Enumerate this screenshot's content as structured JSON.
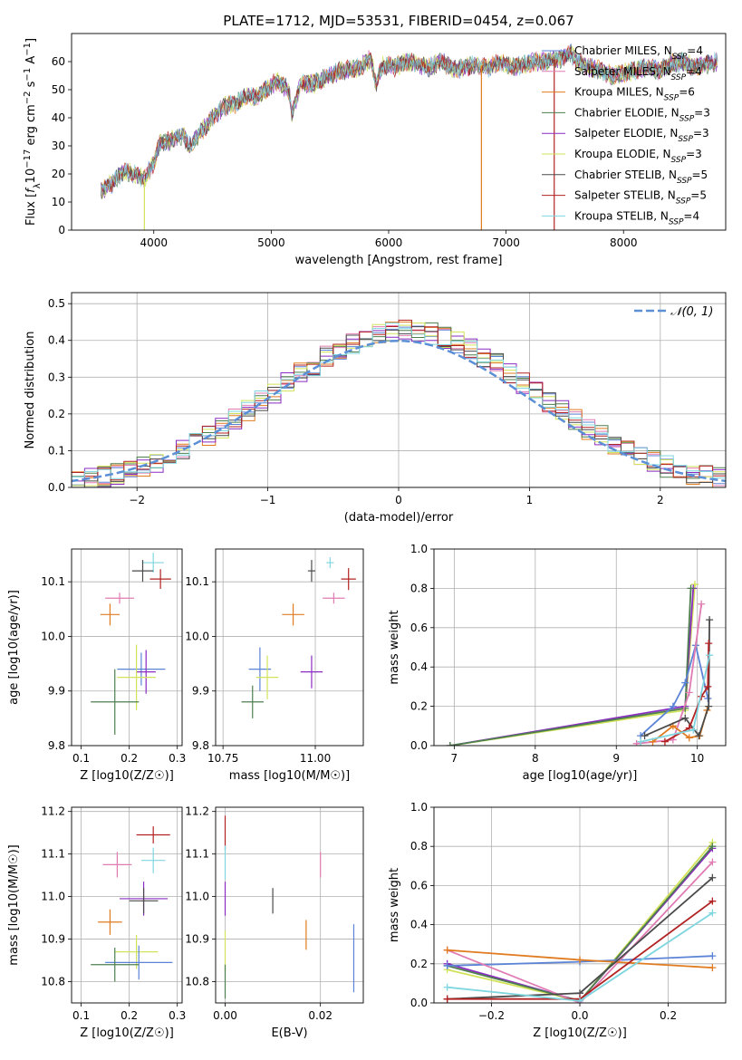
{
  "chart_data": [
    {
      "type": "line",
      "title": "PLATE=1712, MJD=53531, FIBERID=0454, z=0.067",
      "xlabel": "wavelength [Angstrom, rest frame]",
      "ylabel": "Flux [f_λ 10^-17 erg cm^-2 s^-1 A^-1]",
      "xlim": [
        3300,
        8870
      ],
      "ylim": [
        0,
        70
      ],
      "xticks": [
        "4000",
        "5000",
        "6000",
        "7000",
        "8000"
      ],
      "yticks": [
        "0",
        "10",
        "20",
        "30",
        "40",
        "50",
        "60"
      ],
      "grid": false,
      "legend_position": "top-right",
      "spectrum_anchors": {
        "x": [
          3550,
          3650,
          3750,
          3850,
          3920,
          4000,
          4050,
          4150,
          4250,
          4300,
          4400,
          4500,
          4600,
          4700,
          4800,
          4861,
          4950,
          5050,
          5150,
          5175,
          5250,
          5350,
          5450,
          5550,
          5650,
          5750,
          5850,
          5893,
          5950,
          6050,
          6150,
          6250,
          6350,
          6450,
          6563,
          6650,
          6750,
          6850,
          6950,
          7050,
          7150,
          7250,
          7350,
          7450,
          7550,
          7600,
          7700,
          7800,
          7900,
          8000,
          8100,
          8200,
          8300,
          8400,
          8500,
          8600,
          8700,
          8800
        ],
        "y": [
          14,
          17,
          21,
          20,
          18,
          24,
          31,
          32,
          34,
          30,
          35,
          40,
          44,
          45,
          48,
          47,
          50,
          53,
          50,
          41,
          52,
          52,
          54,
          56,
          57,
          58,
          61,
          52,
          59,
          58,
          60,
          59,
          58,
          60,
          57,
          58,
          59,
          58,
          60,
          58,
          59,
          60,
          60,
          61,
          63,
          60,
          58,
          57,
          55,
          56,
          57,
          58,
          57,
          59,
          60,
          58,
          59,
          60
        ]
      },
      "series": [
        {
          "name": "Chabrier MILES, N_SSP=4",
          "color": "#5b83d6",
          "seed": 1
        },
        {
          "name": "Salpeter MILES, N_SSP=4",
          "color": "#e07bb4",
          "seed": 2
        },
        {
          "name": "Kroupa MILES, N_SSP=6",
          "color": "#e07b1f",
          "seed": 3
        },
        {
          "name": "Chabrier ELODIE, N_SSP=3",
          "color": "#4e7f4e",
          "seed": 4
        },
        {
          "name": "Salpeter ELODIE, N_SSP=3",
          "color": "#8a2bc2",
          "seed": 5
        },
        {
          "name": "Kroupa ELODIE, N_SSP=3",
          "color": "#d2e35a",
          "seed": 6
        },
        {
          "name": "Chabrier STELIB, N_SSP=5",
          "color": "#4a4a4a",
          "seed": 7
        },
        {
          "name": "Salpeter STELIB, N_SSP=5",
          "color": "#b22222",
          "seed": 8
        },
        {
          "name": "Kroupa STELIB, N_SSP=4",
          "color": "#7fd6e0",
          "seed": 9
        }
      ],
      "legend": [
        {
          "pre": "Chabrier MILES, N",
          "sub": "SSP",
          "post": "=4",
          "color": "#5b83d6"
        },
        {
          "pre": "Salpeter MILES, N",
          "sub": "SSP",
          "post": "=4",
          "color": "#e07bb4"
        },
        {
          "pre": "Kroupa MILES, N",
          "sub": "SSP",
          "post": "=6",
          "color": "#e07b1f"
        },
        {
          "pre": "Chabrier ELODIE, N",
          "sub": "SSP",
          "post": "=3",
          "color": "#4e7f4e"
        },
        {
          "pre": "Salpeter ELODIE, N",
          "sub": "SSP",
          "post": "=3",
          "color": "#8a2bc2"
        },
        {
          "pre": "Kroupa ELODIE, N",
          "sub": "SSP",
          "post": "=3",
          "color": "#d2e35a"
        },
        {
          "pre": "Chabrier STELIB, N",
          "sub": "SSP",
          "post": "=5",
          "color": "#4a4a4a"
        },
        {
          "pre": "Salpeter STELIB, N",
          "sub": "SSP",
          "post": "=5",
          "color": "#b22222"
        },
        {
          "pre": "Kroupa STELIB, N",
          "sub": "SSP",
          "post": "=4",
          "color": "#7fd6e0"
        }
      ],
      "spikes": [
        {
          "x": 3920,
          "color": "#d2e35a"
        },
        {
          "x": 6790,
          "color": "#e07b1f"
        },
        {
          "x": 7410,
          "color": "#b22222"
        }
      ]
    },
    {
      "type": "line",
      "xlabel": "(data-model)/error",
      "ylabel": "Normed distribution",
      "xlim": [
        -2.5,
        2.5
      ],
      "ylim": [
        0,
        0.53
      ],
      "xticks": [
        "−2",
        "−1",
        "0",
        "1",
        "2"
      ],
      "yticks": [
        "0.0",
        "0.1",
        "0.2",
        "0.3",
        "0.4",
        "0.5"
      ],
      "grid": true,
      "legend_position": "top-right",
      "reference_curve": {
        "name": "𝒩(0, 1)",
        "color": "#5b8fd6",
        "mean": 0,
        "sigma": 1
      },
      "histogram_bin_width": 0.1
    },
    {
      "type": "scatter",
      "xlabel": "Z [log10(Z/Z☉)]",
      "ylabel": "age [log10(age/yr)]",
      "xlim": [
        0.08,
        0.31
      ],
      "ylim": [
        9.8,
        10.16
      ],
      "xticks": [
        "0.1",
        "0.2",
        "0.3"
      ],
      "yticks": [
        "9.8",
        "9.9",
        "10.0",
        "10.1"
      ],
      "grid": true,
      "points": [
        {
          "x": 0.25,
          "y": 10.135,
          "xerr": 0.022,
          "yerr": 0.018,
          "color": "#7fd6e0"
        },
        {
          "x": 0.228,
          "y": 10.12,
          "xerr": 0.022,
          "yerr": 0.02,
          "color": "#4a4a4a"
        },
        {
          "x": 0.265,
          "y": 10.105,
          "xerr": 0.022,
          "yerr": 0.018,
          "color": "#b22222"
        },
        {
          "x": 0.18,
          "y": 10.07,
          "xerr": 0.03,
          "yerr": 0.01,
          "color": "#e07bb4"
        },
        {
          "x": 0.16,
          "y": 10.04,
          "xerr": 0.02,
          "yerr": 0.02,
          "color": "#e07b1f"
        },
        {
          "x": 0.225,
          "y": 9.94,
          "xerr": 0.05,
          "yerr": 0.03,
          "color": "#5b83d6"
        },
        {
          "x": 0.235,
          "y": 9.935,
          "xerr": 0.02,
          "yerr": 0.04,
          "color": "#8a2bc2"
        },
        {
          "x": 0.215,
          "y": 9.925,
          "xerr": 0.04,
          "yerr": 0.06,
          "color": "#d2e35a"
        },
        {
          "x": 0.17,
          "y": 9.88,
          "xerr": 0.05,
          "yerr": 0.06,
          "color": "#4e7f4e"
        }
      ]
    },
    {
      "type": "scatter",
      "xlabel": "mass [log10(M/M☉)]",
      "ylabel": "",
      "xlim": [
        10.73,
        11.13
      ],
      "ylim": [
        9.8,
        10.16
      ],
      "xticks": [
        "10.75",
        "11.00"
      ],
      "yticks": [
        "9.8",
        "9.9",
        "10.0",
        "10.1"
      ],
      "grid": true,
      "points": [
        {
          "x": 11.04,
          "y": 10.135,
          "xerr": 0.01,
          "yerr": 0.01,
          "color": "#7fd6e0"
        },
        {
          "x": 10.99,
          "y": 10.12,
          "xerr": 0.01,
          "yerr": 0.02,
          "color": "#4a4a4a"
        },
        {
          "x": 11.09,
          "y": 10.105,
          "xerr": 0.02,
          "yerr": 0.02,
          "color": "#b22222"
        },
        {
          "x": 11.05,
          "y": 10.07,
          "xerr": 0.03,
          "yerr": 0.01,
          "color": "#e07bb4"
        },
        {
          "x": 10.94,
          "y": 10.04,
          "xerr": 0.03,
          "yerr": 0.02,
          "color": "#e07b1f"
        },
        {
          "x": 10.85,
          "y": 9.94,
          "xerr": 0.03,
          "yerr": 0.04,
          "color": "#5b83d6"
        },
        {
          "x": 10.99,
          "y": 9.935,
          "xerr": 0.03,
          "yerr": 0.03,
          "color": "#8a2bc2"
        },
        {
          "x": 10.87,
          "y": 9.925,
          "xerr": 0.03,
          "yerr": 0.04,
          "color": "#d2e35a"
        },
        {
          "x": 10.83,
          "y": 9.88,
          "xerr": 0.03,
          "yerr": 0.03,
          "color": "#4e7f4e"
        }
      ]
    },
    {
      "type": "line",
      "xlabel": "age [log10(age/yr)]",
      "ylabel": "mass weight",
      "xlim": [
        6.75,
        10.35
      ],
      "ylim": [
        0,
        1
      ],
      "xticks": [
        "7",
        "8",
        "9",
        "10"
      ],
      "yticks": [
        "0.0",
        "0.2",
        "0.4",
        "0.6",
        "0.8",
        "1.0"
      ],
      "grid": true,
      "series": [
        {
          "color": "#d2e35a",
          "x": [
            6.95,
            9.85,
            9.97
          ],
          "y": [
            0.0,
            0.18,
            0.82
          ]
        },
        {
          "color": "#8a2bc2",
          "x": [
            6.95,
            9.85,
            9.95
          ],
          "y": [
            0.0,
            0.2,
            0.8
          ]
        },
        {
          "color": "#4e7f4e",
          "x": [
            6.95,
            9.85,
            9.92
          ],
          "y": [
            0.0,
            0.19,
            0.8
          ]
        },
        {
          "color": "#5b83d6",
          "x": [
            9.3,
            9.7,
            9.85,
            9.98,
            10.13
          ],
          "y": [
            0.05,
            0.2,
            0.32,
            0.51,
            0.24
          ]
        },
        {
          "color": "#e07bb4",
          "x": [
            9.25,
            9.7,
            9.9,
            10.05
          ],
          "y": [
            0.01,
            0.03,
            0.27,
            0.72
          ]
        },
        {
          "color": "#e07b1f",
          "x": [
            9.45,
            9.7,
            9.9,
            10.03,
            10.12
          ],
          "y": [
            0.02,
            0.1,
            0.04,
            0.05,
            0.18
          ]
        },
        {
          "color": "#4a4a4a",
          "x": [
            9.35,
            9.85,
            10.02,
            10.14,
            10.15
          ],
          "y": [
            0.05,
            0.14,
            0.05,
            0.2,
            0.64
          ]
        },
        {
          "color": "#b22222",
          "x": [
            9.6,
            9.9,
            10.05,
            10.13,
            10.14
          ],
          "y": [
            0.02,
            0.09,
            0.25,
            0.3,
            0.52
          ]
        },
        {
          "color": "#7fd6e0",
          "x": [
            9.3,
            9.95,
            10.15
          ],
          "y": [
            0.02,
            0.08,
            0.46
          ]
        }
      ]
    },
    {
      "type": "scatter",
      "xlabel": "Z [log10(Z/Z☉)]",
      "ylabel": "mass [log10(M/M☉)]",
      "xlim": [
        0.08,
        0.31
      ],
      "ylim": [
        10.75,
        11.21
      ],
      "xticks": [
        "0.1",
        "0.2",
        "0.3"
      ],
      "yticks": [
        "10.8",
        "10.9",
        "11.0",
        "11.1",
        "11.2"
      ],
      "grid": true,
      "points": [
        {
          "x": 0.25,
          "y": 11.145,
          "xerr": 0.035,
          "yerr": 0.02,
          "color": "#b22222"
        },
        {
          "x": 0.25,
          "y": 11.085,
          "xerr": 0.025,
          "yerr": 0.03,
          "color": "#7fd6e0"
        },
        {
          "x": 0.175,
          "y": 11.075,
          "xerr": 0.03,
          "yerr": 0.03,
          "color": "#e07bb4"
        },
        {
          "x": 0.23,
          "y": 10.995,
          "xerr": 0.05,
          "yerr": 0.04,
          "color": "#8a2bc2"
        },
        {
          "x": 0.23,
          "y": 10.99,
          "xerr": 0.03,
          "yerr": 0.03,
          "color": "#4a4a4a"
        },
        {
          "x": 0.16,
          "y": 10.94,
          "xerr": 0.025,
          "yerr": 0.03,
          "color": "#e07b1f"
        },
        {
          "x": 0.215,
          "y": 10.87,
          "xerr": 0.045,
          "yerr": 0.04,
          "color": "#d2e35a"
        },
        {
          "x": 0.22,
          "y": 10.845,
          "xerr": 0.07,
          "yerr": 0.04,
          "color": "#5b83d6"
        },
        {
          "x": 0.17,
          "y": 10.84,
          "xerr": 0.05,
          "yerr": 0.04,
          "color": "#4e7f4e"
        }
      ]
    },
    {
      "type": "scatter",
      "xlabel": "E(B-V)",
      "ylabel": "",
      "xlim": [
        -0.002,
        0.029
      ],
      "ylim": [
        10.75,
        11.21
      ],
      "xticks": [
        "0.00",
        "0.02"
      ],
      "yticks": [
        "10.8",
        "10.9",
        "11.0",
        "11.1",
        "11.2"
      ],
      "grid": true,
      "points": [
        {
          "x": 0.0,
          "y": 11.15,
          "xerr": 0.0,
          "yerr": 0.04,
          "color": "#b22222"
        },
        {
          "x": 0.0,
          "y": 11.08,
          "xerr": 0.0,
          "yerr": 0.04,
          "color": "#7fd6e0"
        },
        {
          "x": 0.02,
          "y": 11.075,
          "xerr": 0.0,
          "yerr": 0.03,
          "color": "#e07bb4"
        },
        {
          "x": 0.0,
          "y": 10.995,
          "xerr": 0.0,
          "yerr": 0.04,
          "color": "#8a2bc2"
        },
        {
          "x": 0.01,
          "y": 10.99,
          "xerr": 0.0,
          "yerr": 0.03,
          "color": "#4a4a4a"
        },
        {
          "x": 0.017,
          "y": 10.91,
          "xerr": 0.0,
          "yerr": 0.035,
          "color": "#e07b1f"
        },
        {
          "x": 0.0,
          "y": 10.87,
          "xerr": 0.0,
          "yerr": 0.05,
          "color": "#d2e35a"
        },
        {
          "x": 0.027,
          "y": 10.855,
          "xerr": 0.0,
          "yerr": 0.08,
          "color": "#5b83d6"
        },
        {
          "x": 0.0,
          "y": 10.8,
          "xerr": 0.0,
          "yerr": 0.04,
          "color": "#4e7f4e"
        }
      ]
    },
    {
      "type": "line",
      "xlabel": "Z [log10(Z/Z☉)]",
      "ylabel": "mass weight",
      "xlim": [
        -0.33,
        0.33
      ],
      "ylim": [
        0,
        1
      ],
      "xticks": [
        "−0.2",
        "0.0",
        "0.2"
      ],
      "yticks": [
        "0.0",
        "0.2",
        "0.4",
        "0.6",
        "0.8",
        "1.0"
      ],
      "grid": true,
      "series": [
        {
          "color": "#d2e35a",
          "x": [
            -0.3,
            0.0,
            0.3
          ],
          "y": [
            0.17,
            0.01,
            0.82
          ]
        },
        {
          "color": "#8a2bc2",
          "x": [
            -0.3,
            0.0,
            0.3
          ],
          "y": [
            0.2,
            0.01,
            0.79
          ]
        },
        {
          "color": "#4e7f4e",
          "x": [
            -0.3,
            0.0,
            0.3
          ],
          "y": [
            0.19,
            0.01,
            0.8
          ]
        },
        {
          "color": "#5b83d6",
          "x": [
            -0.3,
            0.0,
            0.3
          ],
          "y": [
            0.19,
            0.21,
            0.24
          ]
        },
        {
          "color": "#e07bb4",
          "x": [
            -0.3,
            0.0,
            0.3
          ],
          "y": [
            0.27,
            0.0,
            0.72
          ]
        },
        {
          "color": "#e07b1f",
          "x": [
            -0.3,
            0.0,
            0.3
          ],
          "y": [
            0.27,
            0.22,
            0.18
          ]
        },
        {
          "color": "#4a4a4a",
          "x": [
            -0.3,
            0.0,
            0.3
          ],
          "y": [
            0.02,
            0.05,
            0.64
          ]
        },
        {
          "color": "#b22222",
          "x": [
            -0.3,
            0.0,
            0.3
          ],
          "y": [
            0.02,
            0.02,
            0.52
          ]
        },
        {
          "color": "#7fd6e0",
          "x": [
            -0.3,
            0.0,
            0.3
          ],
          "y": [
            0.08,
            0.01,
            0.46
          ]
        }
      ]
    }
  ]
}
